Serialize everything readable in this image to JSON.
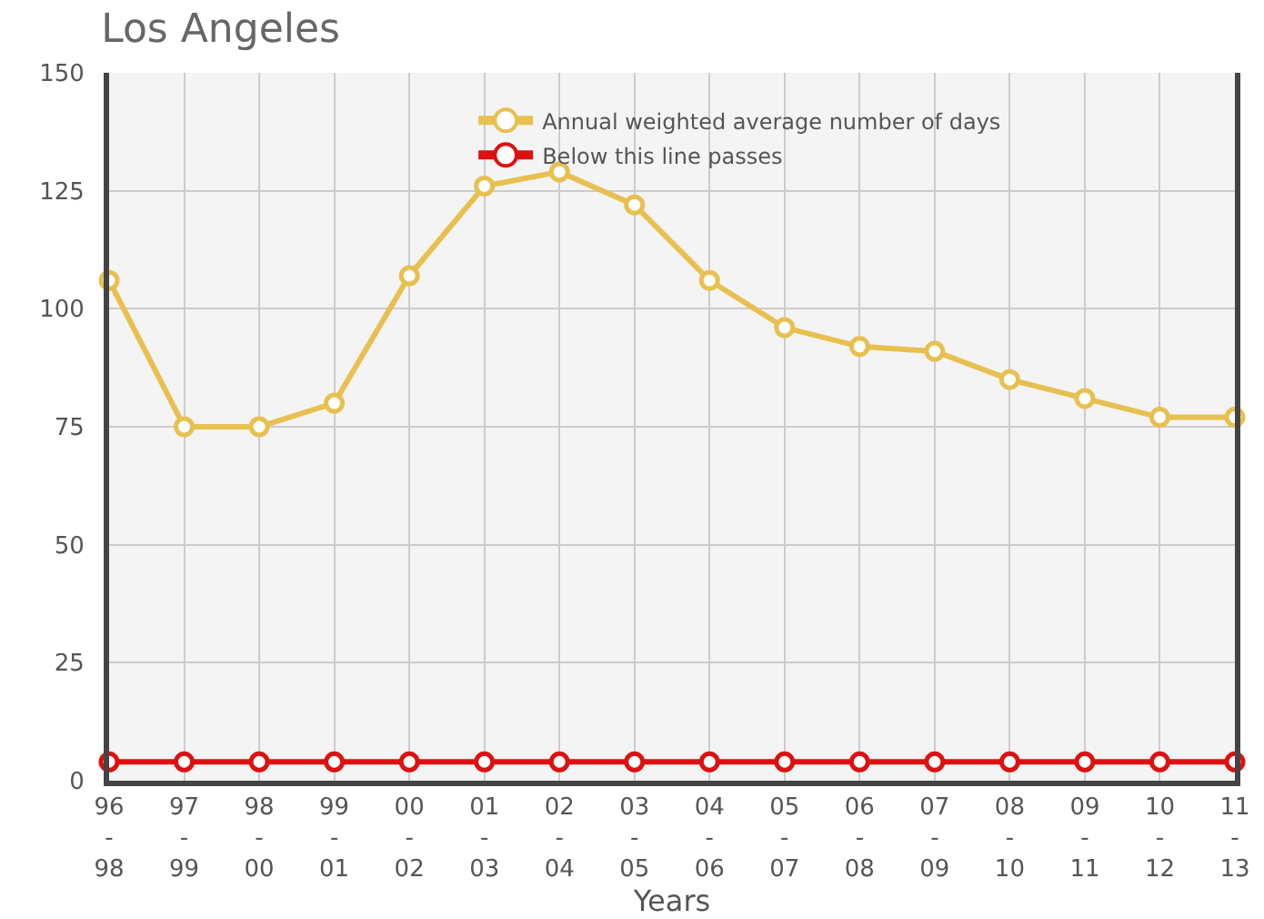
{
  "chart_data": {
    "type": "line",
    "title": "Los Angeles",
    "xlabel": "Years",
    "categories": [
      "96\n-\n98",
      "97\n-\n99",
      "98\n-\n00",
      "99\n-\n01",
      "00\n-\n02",
      "01\n-\n03",
      "02\n-\n04",
      "03\n-\n05",
      "04\n-\n06",
      "05\n-\n07",
      "06\n-\n08",
      "07\n-\n09",
      "08\n-\n10",
      "09\n-\n11",
      "10\n-\n12",
      "11\n-\n13"
    ],
    "series": [
      {
        "name": "Annual weighted average number of days",
        "color": "#e8c050",
        "values": [
          106,
          75,
          75,
          80,
          107,
          126,
          129,
          122,
          106,
          96,
          92,
          91,
          85,
          81,
          77,
          77
        ]
      },
      {
        "name": "Below this line passes",
        "color": "#dd1111",
        "values": [
          4,
          4,
          4,
          4,
          4,
          4,
          4,
          4,
          4,
          4,
          4,
          4,
          4,
          4,
          4,
          4
        ]
      }
    ],
    "ylim": [
      0,
      150
    ],
    "yticks": [
      0,
      25,
      50,
      75,
      100,
      125,
      150
    ],
    "grid": true,
    "legend": "top",
    "marker": "circle",
    "line_style": "solid"
  }
}
